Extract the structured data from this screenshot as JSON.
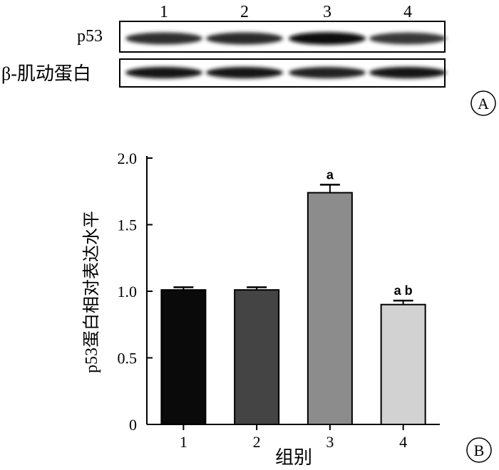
{
  "blot": {
    "lane_labels": [
      "1",
      "2",
      "3",
      "4"
    ],
    "row_labels": [
      "p53",
      "β-肌动蛋白"
    ],
    "panel_label": "A",
    "band_intensity": [
      [
        0.82,
        0.84,
        0.95,
        0.78
      ],
      [
        0.92,
        0.92,
        0.86,
        0.9
      ]
    ]
  },
  "chart_data": {
    "type": "bar",
    "panel_label": "B",
    "categories": [
      "1",
      "2",
      "3",
      "4"
    ],
    "values": [
      1.01,
      1.01,
      1.74,
      0.9
    ],
    "errors": [
      0.02,
      0.02,
      0.06,
      0.03
    ],
    "annotations": [
      "",
      "",
      "a",
      "a b"
    ],
    "bar_colors": [
      "#0a0a0a",
      "#444444",
      "#8c8c8c",
      "#d2d2d2"
    ],
    "xlabel": "组别",
    "ylabel": "p53蛋白相对表达水平",
    "ylim": [
      0,
      2.0
    ],
    "yticks": [
      0,
      0.5,
      1.0,
      1.5,
      2.0
    ],
    "ytick_labels": [
      "0",
      "0.5",
      "1.0",
      "1.5",
      "2.0"
    ],
    "grid": false
  }
}
